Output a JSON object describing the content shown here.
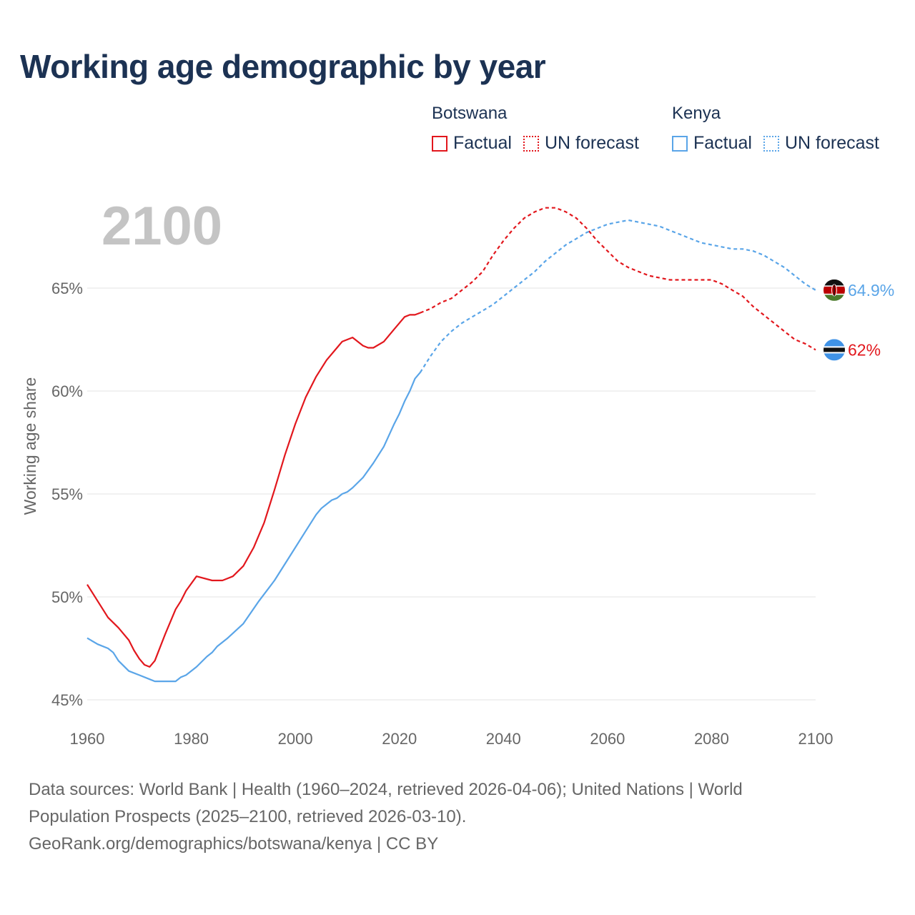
{
  "title": "Working age demographic by year",
  "legend": {
    "botswana": {
      "name": "Botswana",
      "factual": "Factual",
      "forecast": "UN forecast",
      "color": "#e2171d"
    },
    "kenya": {
      "name": "Kenya",
      "factual": "Factual",
      "forecast": "UN forecast",
      "color": "#5aa5e8"
    }
  },
  "year_label": "2100",
  "footer": {
    "line1": "Data sources: World Bank | Health (1960–2024, retrieved 2026-04-06); United Nations | World",
    "line2": "Population Prospects (2025–2100, retrieved 2026-03-10).",
    "line3": "GeoRank.org/demographics/botswana/kenya | CC BY"
  },
  "chart_data": {
    "type": "line",
    "title": "Working age demographic by year",
    "xlabel": "",
    "ylabel": "Working age share",
    "xlim": [
      1960,
      2100
    ],
    "ylim": [
      45,
      65
    ],
    "x_ticks": [
      1960,
      1980,
      2000,
      2020,
      2040,
      2060,
      2080,
      2100
    ],
    "y_ticks": [
      45,
      50,
      55,
      60,
      65
    ],
    "y_tick_labels": [
      "45%",
      "50%",
      "55%",
      "60%",
      "65%"
    ],
    "series": [
      {
        "name": "Botswana",
        "color": "#e2171d",
        "end_label": "62%",
        "factual": {
          "x": [
            1960,
            1962,
            1964,
            1966,
            1968,
            1969,
            1970,
            1971,
            1972,
            1973,
            1975,
            1977,
            1978,
            1979,
            1981,
            1984,
            1985,
            1986,
            1987,
            1988,
            1990,
            1992,
            1994,
            1996,
            1998,
            2000,
            2002,
            2004,
            2006,
            2008,
            2009,
            2011,
            2013,
            2014,
            2015,
            2017,
            2019,
            2021,
            2022,
            2023,
            2024
          ],
          "y": [
            50.6,
            49.8,
            49.0,
            48.5,
            47.9,
            47.4,
            47.0,
            46.7,
            46.6,
            46.9,
            48.2,
            49.4,
            49.8,
            50.3,
            51.0,
            50.8,
            50.8,
            50.8,
            50.9,
            51.0,
            51.5,
            52.4,
            53.6,
            55.2,
            56.9,
            58.4,
            59.7,
            60.7,
            61.5,
            62.1,
            62.4,
            62.6,
            62.2,
            62.1,
            62.1,
            62.4,
            63.0,
            63.6,
            63.7,
            63.7,
            63.8
          ]
        },
        "forecast": {
          "x": [
            2024,
            2026,
            2028,
            2030,
            2032,
            2034,
            2036,
            2038,
            2040,
            2042,
            2044,
            2046,
            2048,
            2050,
            2052,
            2054,
            2056,
            2058,
            2060,
            2062,
            2064,
            2066,
            2068,
            2070,
            2072,
            2074,
            2076,
            2078,
            2080,
            2082,
            2084,
            2086,
            2088,
            2090,
            2092,
            2094,
            2096,
            2098,
            2100
          ],
          "y": [
            63.8,
            64.0,
            64.3,
            64.5,
            64.9,
            65.3,
            65.8,
            66.6,
            67.3,
            67.9,
            68.4,
            68.7,
            68.9,
            68.9,
            68.7,
            68.4,
            67.9,
            67.3,
            66.8,
            66.3,
            66.0,
            65.8,
            65.6,
            65.5,
            65.4,
            65.4,
            65.4,
            65.4,
            65.4,
            65.2,
            64.9,
            64.6,
            64.1,
            63.7,
            63.3,
            62.9,
            62.5,
            62.3,
            62.0
          ]
        }
      },
      {
        "name": "Kenya",
        "color": "#5aa5e8",
        "end_label": "64.9%",
        "factual": {
          "x": [
            1960,
            1962,
            1964,
            1965,
            1966,
            1968,
            1970,
            1972,
            1973,
            1975,
            1977,
            1978,
            1979,
            1981,
            1983,
            1984,
            1985,
            1987,
            1990,
            1993,
            1996,
            1999,
            2002,
            2003,
            2004,
            2005,
            2006,
            2007,
            2008,
            2009,
            2010,
            2011,
            2013,
            2015,
            2017,
            2019,
            2020,
            2021,
            2022,
            2023,
            2024
          ],
          "y": [
            48.0,
            47.7,
            47.5,
            47.3,
            46.9,
            46.4,
            46.2,
            46.0,
            45.9,
            45.9,
            45.9,
            46.1,
            46.2,
            46.6,
            47.1,
            47.3,
            47.6,
            48.0,
            48.7,
            49.8,
            50.8,
            52.0,
            53.2,
            53.6,
            54.0,
            54.3,
            54.5,
            54.7,
            54.8,
            55.0,
            55.1,
            55.3,
            55.8,
            56.5,
            57.3,
            58.4,
            58.9,
            59.5,
            60.0,
            60.6,
            60.9
          ]
        },
        "forecast": {
          "x": [
            2024,
            2026,
            2028,
            2030,
            2032,
            2034,
            2036,
            2038,
            2040,
            2042,
            2044,
            2046,
            2048,
            2050,
            2052,
            2054,
            2056,
            2058,
            2060,
            2062,
            2064,
            2066,
            2068,
            2070,
            2072,
            2074,
            2076,
            2078,
            2080,
            2082,
            2084,
            2086,
            2088,
            2090,
            2092,
            2094,
            2096,
            2098,
            2100
          ],
          "y": [
            60.9,
            61.7,
            62.4,
            62.9,
            63.3,
            63.6,
            63.9,
            64.2,
            64.6,
            65.0,
            65.4,
            65.8,
            66.3,
            66.7,
            67.1,
            67.4,
            67.7,
            67.9,
            68.1,
            68.2,
            68.3,
            68.2,
            68.1,
            68.0,
            67.8,
            67.6,
            67.4,
            67.2,
            67.1,
            67.0,
            66.9,
            66.9,
            66.8,
            66.6,
            66.3,
            66.0,
            65.6,
            65.2,
            64.9
          ]
        }
      }
    ]
  }
}
